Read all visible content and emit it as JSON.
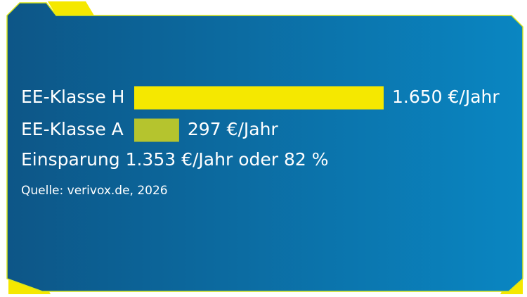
{
  "chart_data": {
    "type": "bar",
    "orientation": "horizontal",
    "categories": [
      "EE-Klasse H",
      "EE-Klasse A"
    ],
    "values": [
      1650,
      297
    ],
    "value_labels": [
      "1.650 €/Jahr",
      "297 €/Jahr"
    ],
    "colors": [
      "#f5e800",
      "#b5c42e"
    ],
    "annotation": "Einsparung 1.353 €/Jahr oder 82 %",
    "source": "Quelle: verivox.de, 2026"
  }
}
